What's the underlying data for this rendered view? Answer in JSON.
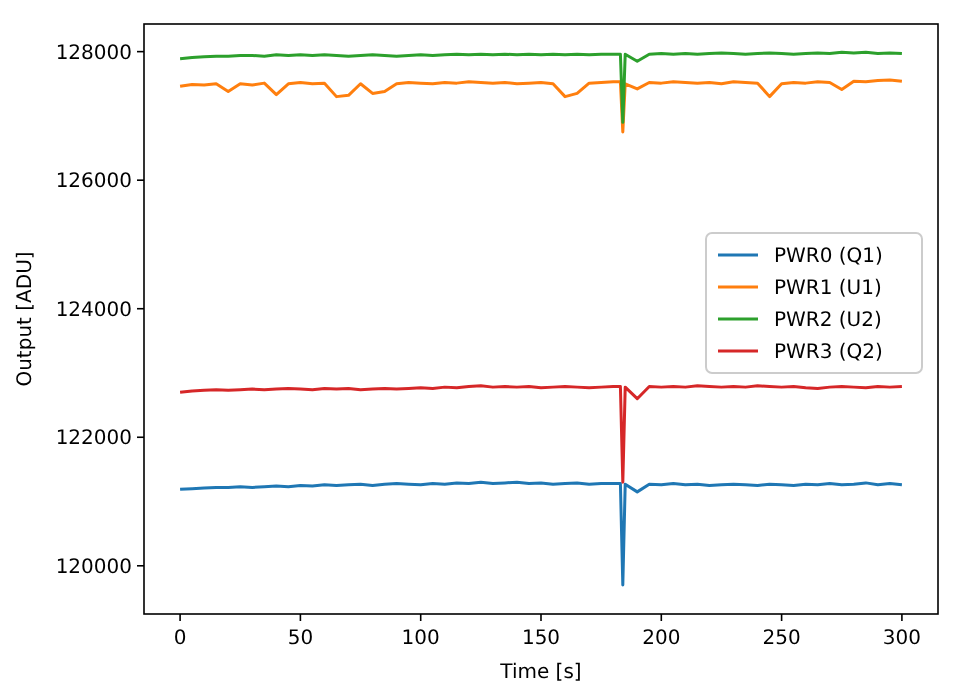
{
  "chart_data": {
    "type": "line",
    "xlabel": "Time [s]",
    "ylabel": "Output [ADU]",
    "xlim": [
      -15,
      315
    ],
    "ylim": [
      119250,
      128430
    ],
    "xticks": [
      0,
      50,
      100,
      150,
      200,
      250,
      300
    ],
    "yticks": [
      120000,
      122000,
      124000,
      126000,
      128000
    ],
    "legend": "right",
    "grid": false,
    "marker": "none",
    "line_style": "solid",
    "x": [
      0,
      5,
      10,
      15,
      20,
      25,
      30,
      35,
      40,
      45,
      50,
      55,
      60,
      65,
      70,
      75,
      80,
      85,
      90,
      95,
      100,
      105,
      110,
      115,
      120,
      125,
      130,
      135,
      140,
      145,
      150,
      155,
      160,
      165,
      170,
      175,
      180,
      183,
      184,
      185,
      190,
      195,
      200,
      205,
      210,
      215,
      220,
      225,
      230,
      235,
      240,
      245,
      250,
      255,
      260,
      265,
      270,
      275,
      280,
      285,
      290,
      295,
      300
    ],
    "series": [
      {
        "name": "PWR0 (Q1)",
        "color": "#1f77b4",
        "values": [
          121190,
          121200,
          121210,
          121220,
          121220,
          121230,
          121220,
          121230,
          121240,
          121230,
          121250,
          121240,
          121260,
          121250,
          121260,
          121270,
          121250,
          121270,
          121280,
          121270,
          121260,
          121280,
          121270,
          121290,
          121280,
          121300,
          121280,
          121290,
          121300,
          121280,
          121290,
          121270,
          121280,
          121290,
          121270,
          121280,
          121280,
          121280,
          119700,
          121270,
          121150,
          121270,
          121260,
          121280,
          121260,
          121270,
          121250,
          121260,
          121270,
          121260,
          121250,
          121270,
          121260,
          121250,
          121270,
          121260,
          121280,
          121260,
          121270,
          121290,
          121260,
          121280,
          121260
        ]
      },
      {
        "name": "PWR1 (U1)",
        "color": "#ff7f0e",
        "values": [
          127460,
          127490,
          127480,
          127500,
          127380,
          127500,
          127480,
          127510,
          127330,
          127500,
          127520,
          127500,
          127510,
          127300,
          127320,
          127500,
          127350,
          127380,
          127500,
          127520,
          127510,
          127500,
          127520,
          127510,
          127530,
          127520,
          127510,
          127520,
          127500,
          127510,
          127520,
          127500,
          127300,
          127350,
          127510,
          127520,
          127530,
          127530,
          126750,
          127500,
          127420,
          127520,
          127510,
          127530,
          127520,
          127510,
          127520,
          127500,
          127530,
          127520,
          127510,
          127300,
          127500,
          127520,
          127510,
          127530,
          127520,
          127410,
          127540,
          127530,
          127550,
          127560,
          127540
        ]
      },
      {
        "name": "PWR2 (U2)",
        "color": "#2ca02c",
        "values": [
          127890,
          127910,
          127920,
          127930,
          127930,
          127940,
          127940,
          127930,
          127950,
          127940,
          127950,
          127940,
          127950,
          127940,
          127930,
          127940,
          127950,
          127940,
          127930,
          127940,
          127950,
          127940,
          127950,
          127960,
          127950,
          127960,
          127950,
          127960,
          127950,
          127960,
          127950,
          127960,
          127950,
          127960,
          127950,
          127960,
          127960,
          127960,
          126900,
          127960,
          127850,
          127960,
          127970,
          127960,
          127970,
          127960,
          127970,
          127980,
          127970,
          127960,
          127970,
          127980,
          127970,
          127960,
          127970,
          127980,
          127970,
          127990,
          127980,
          127990,
          127970,
          127980,
          127970
        ]
      },
      {
        "name": "PWR3 (Q2)",
        "color": "#d62728",
        "values": [
          122700,
          122720,
          122730,
          122740,
          122730,
          122740,
          122750,
          122740,
          122750,
          122760,
          122750,
          122740,
          122760,
          122750,
          122760,
          122740,
          122750,
          122760,
          122750,
          122760,
          122770,
          122760,
          122780,
          122770,
          122790,
          122800,
          122780,
          122790,
          122780,
          122790,
          122770,
          122780,
          122790,
          122780,
          122770,
          122780,
          122790,
          122790,
          121300,
          122780,
          122600,
          122790,
          122780,
          122790,
          122780,
          122800,
          122790,
          122780,
          122790,
          122780,
          122800,
          122790,
          122780,
          122790,
          122770,
          122760,
          122780,
          122790,
          122780,
          122770,
          122790,
          122780,
          122790
        ]
      }
    ]
  }
}
